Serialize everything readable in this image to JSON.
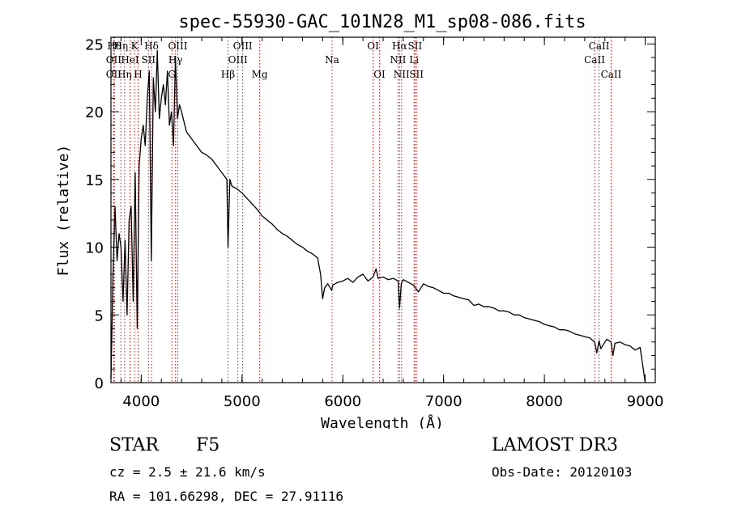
{
  "chart_data": {
    "type": "line",
    "title": "spec-55930-GAC_101N28_M1_sp08-086.fits",
    "xlabel": "Wavelength (Å)",
    "ylabel": "Flux (relative)",
    "xlim": [
      3700,
      9100
    ],
    "ylim": [
      0,
      25.5
    ],
    "xticks": [
      4000,
      5000,
      6000,
      7000,
      8000,
      9000
    ],
    "yticks": [
      0,
      5,
      10,
      15,
      20,
      25
    ],
    "series": [
      {
        "name": "spectrum",
        "x": [
          3700,
          3720,
          3740,
          3760,
          3780,
          3800,
          3820,
          3840,
          3860,
          3880,
          3900,
          3920,
          3940,
          3960,
          3980,
          4000,
          4020,
          4040,
          4060,
          4080,
          4100,
          4120,
          4140,
          4160,
          4180,
          4200,
          4220,
          4240,
          4260,
          4280,
          4300,
          4320,
          4340,
          4360,
          4380,
          4400,
          4450,
          4500,
          4550,
          4600,
          4650,
          4700,
          4750,
          4800,
          4850,
          4861,
          4880,
          4900,
          4950,
          5000,
          5050,
          5100,
          5150,
          5200,
          5250,
          5300,
          5350,
          5400,
          5450,
          5500,
          5550,
          5600,
          5650,
          5700,
          5750,
          5780,
          5800,
          5820,
          5850,
          5890,
          5900,
          5950,
          6000,
          6050,
          6100,
          6150,
          6200,
          6250,
          6300,
          6330,
          6350,
          6400,
          6450,
          6500,
          6550,
          6563,
          6580,
          6600,
          6650,
          6700,
          6750,
          6800,
          6850,
          6900,
          6950,
          7000,
          7050,
          7100,
          7150,
          7200,
          7250,
          7300,
          7350,
          7400,
          7450,
          7500,
          7550,
          7600,
          7650,
          7700,
          7750,
          7800,
          7850,
          7900,
          7950,
          8000,
          8050,
          8100,
          8150,
          8200,
          8250,
          8300,
          8350,
          8400,
          8450,
          8498,
          8520,
          8542,
          8560,
          8600,
          8620,
          8662,
          8680,
          8700,
          8750,
          8800,
          8850,
          8900,
          8950,
          9000
        ],
        "y": [
          0.3,
          8.0,
          13.0,
          9.0,
          11.0,
          10.0,
          6.0,
          10.5,
          5.0,
          12.0,
          13.0,
          6.0,
          15.5,
          4.0,
          16.0,
          18.0,
          19.0,
          17.5,
          21.0,
          23.0,
          9.0,
          22.5,
          20.0,
          24.5,
          19.5,
          21.0,
          22.0,
          20.5,
          23.0,
          19.0,
          20.0,
          17.5,
          24.0,
          19.5,
          20.5,
          20.0,
          18.5,
          18.0,
          17.5,
          17.0,
          16.8,
          16.5,
          16.0,
          15.5,
          15.0,
          10.0,
          15.0,
          14.5,
          14.3,
          14.0,
          13.6,
          13.2,
          12.8,
          12.3,
          12.0,
          11.7,
          11.3,
          11.0,
          10.8,
          10.5,
          10.2,
          10.0,
          9.7,
          9.5,
          9.2,
          8.0,
          6.2,
          7.0,
          7.3,
          6.8,
          7.2,
          7.4,
          7.5,
          7.7,
          7.4,
          7.8,
          8.0,
          7.5,
          7.8,
          8.4,
          7.7,
          7.8,
          7.6,
          7.7,
          7.5,
          5.5,
          7.3,
          7.6,
          7.4,
          7.2,
          6.7,
          7.3,
          7.1,
          7.0,
          6.8,
          6.6,
          6.6,
          6.4,
          6.3,
          6.2,
          6.1,
          5.7,
          5.8,
          5.6,
          5.6,
          5.5,
          5.3,
          5.3,
          5.2,
          5.0,
          5.0,
          4.8,
          4.7,
          4.6,
          4.5,
          4.3,
          4.2,
          4.1,
          3.9,
          3.9,
          3.8,
          3.6,
          3.5,
          3.4,
          3.3,
          3.0,
          2.2,
          3.1,
          2.5,
          3.0,
          3.2,
          3.0,
          2.0,
          2.9,
          3.0,
          2.8,
          2.7,
          2.4,
          2.6,
          0.0
        ]
      }
    ],
    "lines": [
      {
        "wave": 3734,
        "label": "Hθ",
        "row": 0
      },
      {
        "wave": 3727,
        "label": "OII",
        "row": 1
      },
      {
        "wave": 3727,
        "label": "OII",
        "row": 2
      },
      {
        "wave": 3798,
        "label": "Hη",
        "row": 0
      },
      {
        "wave": 3835,
        "label": "Hη",
        "row": 2
      },
      {
        "wave": 3889,
        "label": "HeI",
        "row": 1
      },
      {
        "wave": 3934,
        "label": "K",
        "row": 0
      },
      {
        "wave": 3969,
        "label": "H",
        "row": 2
      },
      {
        "wave": 4072,
        "label": "SII",
        "row": 1
      },
      {
        "wave": 4102,
        "label": "Hδ",
        "row": 0
      },
      {
        "wave": 4304,
        "label": "G",
        "row": 2
      },
      {
        "wave": 4340,
        "label": "Hγ",
        "row": 1
      },
      {
        "wave": 4363,
        "label": "OIII",
        "row": 0
      },
      {
        "wave": 4861,
        "label": "Hβ",
        "row": 2
      },
      {
        "wave": 4959,
        "label": "OIII",
        "row": 1
      },
      {
        "wave": 5007,
        "label": "OIII",
        "row": 0
      },
      {
        "wave": 5175,
        "label": "Mg",
        "row": 2
      },
      {
        "wave": 5893,
        "label": "Na",
        "row": 1
      },
      {
        "wave": 6300,
        "label": "OI",
        "row": 0
      },
      {
        "wave": 6364,
        "label": "OI",
        "row": 2
      },
      {
        "wave": 6548,
        "label": "NII",
        "row": 1
      },
      {
        "wave": 6563,
        "label": "Hα",
        "row": 0
      },
      {
        "wave": 6583,
        "label": "NII",
        "row": 2
      },
      {
        "wave": 6707,
        "label": "Li",
        "row": 1
      },
      {
        "wave": 6716,
        "label": "SII",
        "row": 0
      },
      {
        "wave": 6731,
        "label": "SII",
        "row": 2
      },
      {
        "wave": 8498,
        "label": "CaII",
        "row": 1
      },
      {
        "wave": 8542,
        "label": "CaII",
        "row": 0
      },
      {
        "wave": 8662,
        "label": "CaII",
        "row": 2
      }
    ]
  },
  "info": {
    "object_class": "STAR",
    "subclass": "F5",
    "survey": "LAMOST DR3",
    "cz": "cz = 2.5 ± 21.6 km/s",
    "obs_date": "Obs-Date: 20120103",
    "coords": "RA = 101.66298, DEC =  27.91116"
  },
  "colors": {
    "line_marker": "#b22222",
    "spectrum": "#000000"
  }
}
